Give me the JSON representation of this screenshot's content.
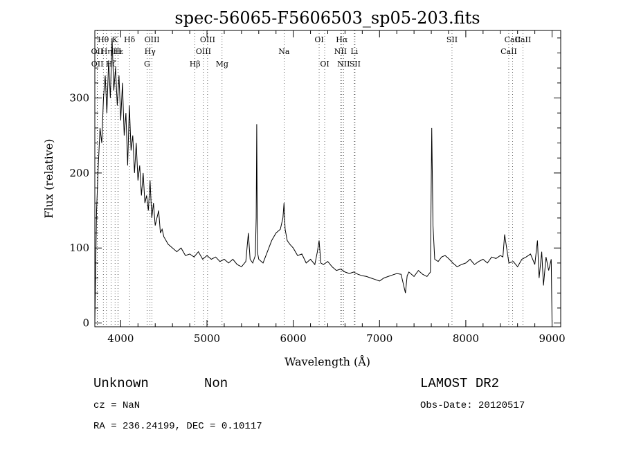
{
  "chart_data": {
    "type": "line",
    "title": "spec-56065-F5606503_sp05-203.fits",
    "xlabel": "Wavelength (Å)",
    "ylabel": "Flux (relative)",
    "xlim": [
      3700,
      9100
    ],
    "ylim": [
      -5,
      390
    ],
    "x_ticks": [
      4000,
      5000,
      6000,
      7000,
      8000,
      9000
    ],
    "y_ticks": [
      0,
      100,
      200,
      300
    ],
    "grid": false,
    "spectral_lines": [
      {
        "label": "Hθ",
        "wavelength": 3798,
        "row": 1
      },
      {
        "label": "OII",
        "wavelength": 3727,
        "row": 2
      },
      {
        "label": "OII",
        "wavelength": 3729,
        "row": 3
      },
      {
        "label": "Hη",
        "wavelength": 3835,
        "row": 2
      },
      {
        "label": "Hζ",
        "wavelength": 3889,
        "row": 3
      },
      {
        "label": "K",
        "wavelength": 3934,
        "row": 1
      },
      {
        "label": "H",
        "wavelength": 3969,
        "row": 2
      },
      {
        "label": "Hε",
        "wavelength": 3970,
        "row": 2
      },
      {
        "label": "Hδ",
        "wavelength": 4102,
        "row": 1
      },
      {
        "label": "OIII",
        "wavelength": 4363,
        "row": 1
      },
      {
        "label": "Hγ",
        "wavelength": 4340,
        "row": 2
      },
      {
        "label": "G",
        "wavelength": 4305,
        "row": 3
      },
      {
        "label": "Hβ",
        "wavelength": 4861,
        "row": 3
      },
      {
        "label": "OIII",
        "wavelength": 4959,
        "row": 2
      },
      {
        "label": "OIII",
        "wavelength": 5007,
        "row": 1
      },
      {
        "label": "Mg",
        "wavelength": 5175,
        "row": 3
      },
      {
        "label": "Na",
        "wavelength": 5893,
        "row": 2
      },
      {
        "label": "OI",
        "wavelength": 6300,
        "row": 1
      },
      {
        "label": "OI",
        "wavelength": 6364,
        "row": 3
      },
      {
        "label": "Hα",
        "wavelength": 6563,
        "row": 1
      },
      {
        "label": "NII",
        "wavelength": 6548,
        "row": 2
      },
      {
        "label": "NII",
        "wavelength": 6583,
        "row": 3
      },
      {
        "label": "SII",
        "wavelength": 6716,
        "row": 3
      },
      {
        "label": "Li",
        "wavelength": 6708,
        "row": 2
      },
      {
        "label": "SII",
        "wavelength": 7840,
        "row": 1
      },
      {
        "label": "CaII",
        "wavelength": 8498,
        "row": 2
      },
      {
        "label": "CaII",
        "wavelength": 8542,
        "row": 1
      },
      {
        "label": "CaII",
        "wavelength": 8662,
        "row": 1
      }
    ],
    "series": [
      {
        "x": [
          3700,
          3720,
          3740,
          3760,
          3780,
          3800,
          3820,
          3840,
          3860,
          3880,
          3900,
          3920,
          3940,
          3960,
          3980,
          4000,
          4020,
          4040,
          4060,
          4080,
          4100,
          4120,
          4140,
          4160,
          4180,
          4200,
          4220,
          4240,
          4260,
          4280,
          4300,
          4320,
          4340,
          4360,
          4380,
          4400,
          4420,
          4440,
          4460,
          4480,
          4500,
          4550,
          4600,
          4650,
          4700,
          4750,
          4800,
          4850,
          4900,
          4950,
          5000,
          5050,
          5100,
          5150,
          5200,
          5250,
          5300,
          5350,
          5400,
          5450,
          5480,
          5500,
          5530,
          5560,
          5570,
          5577,
          5584,
          5600,
          5650,
          5700,
          5750,
          5800,
          5850,
          5880,
          5893,
          5906,
          5930,
          5960,
          6000,
          6050,
          6100,
          6150,
          6200,
          6250,
          6280,
          6300,
          6320,
          6350,
          6400,
          6450,
          6500,
          6550,
          6600,
          6650,
          6700,
          6750,
          6800,
          6850,
          6900,
          6950,
          7000,
          7050,
          7100,
          7150,
          7200,
          7250,
          7300,
          7320,
          7340,
          7400,
          7450,
          7500,
          7550,
          7590,
          7605,
          7620,
          7640,
          7680,
          7720,
          7760,
          7800,
          7850,
          7900,
          7950,
          8000,
          8050,
          8100,
          8150,
          8200,
          8250,
          8300,
          8350,
          8400,
          8430,
          8450,
          8480,
          8500,
          8550,
          8600,
          8650,
          8700,
          8750,
          8800,
          8830,
          8850,
          8880,
          8900,
          8930,
          8960,
          8990,
          9000
        ],
        "y": [
          0,
          150,
          210,
          260,
          240,
          300,
          330,
          280,
          350,
          300,
          380,
          310,
          340,
          290,
          330,
          270,
          320,
          250,
          280,
          210,
          290,
          230,
          250,
          200,
          240,
          190,
          210,
          170,
          200,
          160,
          170,
          150,
          190,
          140,
          160,
          130,
          140,
          150,
          120,
          125,
          115,
          105,
          100,
          95,
          100,
          90,
          92,
          88,
          95,
          85,
          90,
          85,
          88,
          82,
          85,
          80,
          85,
          78,
          75,
          82,
          120,
          85,
          80,
          90,
          140,
          265,
          95,
          85,
          80,
          95,
          110,
          120,
          125,
          140,
          160,
          125,
          110,
          105,
          100,
          90,
          92,
          80,
          85,
          78,
          95,
          110,
          80,
          78,
          82,
          75,
          70,
          72,
          68,
          66,
          68,
          65,
          63,
          62,
          60,
          58,
          56,
          60,
          62,
          64,
          66,
          65,
          40,
          63,
          68,
          62,
          70,
          65,
          62,
          68,
          260,
          130,
          85,
          82,
          88,
          90,
          86,
          80,
          75,
          78,
          80,
          85,
          78,
          82,
          85,
          80,
          88,
          86,
          90,
          88,
          118,
          95,
          80,
          82,
          75,
          85,
          88,
          92,
          78,
          110,
          60,
          95,
          50,
          88,
          70,
          85,
          0
        ]
      }
    ]
  },
  "info": {
    "class_label": "Unknown",
    "subclass_label": "Non",
    "cz": "cz = NaN",
    "radec": "RA = 236.24199, DEC =   0.10117",
    "survey": "LAMOST DR2",
    "obs_date": "Obs-Date: 20120517"
  }
}
